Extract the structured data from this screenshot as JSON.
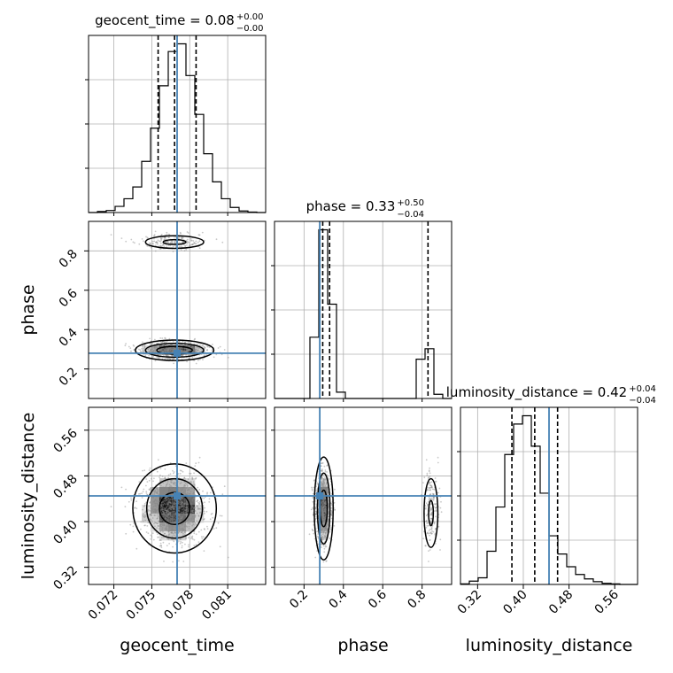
{
  "chart_data": {
    "type": "corner",
    "parameters": [
      "geocent_time",
      "phase",
      "luminosity_distance"
    ],
    "truths": {
      "geocent_time": 0.077,
      "phase": 0.28,
      "luminosity_distance": 0.445
    },
    "titles": [
      {
        "param": "geocent_time",
        "text": "geocent_time = 0.08",
        "sup": "+0.00",
        "sub": "−0.00"
      },
      {
        "param": "phase",
        "text": "phase = 0.33",
        "sup": "+0.50",
        "sub": "−0.04"
      },
      {
        "param": "luminosity_distance",
        "text": "luminosity_distance = 0.42",
        "sup": "+0.04",
        "sub": "−0.04"
      }
    ],
    "axis_labels": {
      "geocent_time": "geocent_time",
      "phase": "phase",
      "luminosity_distance": "luminosity_distance"
    },
    "ranges": {
      "geocent_time": [
        0.07,
        0.084
      ],
      "phase": [
        0.05,
        0.95
      ],
      "luminosity_distance": [
        0.29,
        0.6
      ]
    },
    "ticks": {
      "geocent_time": [
        "0.072",
        "0.075",
        "0.078",
        "0.081"
      ],
      "phase": [
        "0.2",
        "0.4",
        "0.6",
        "0.8"
      ],
      "luminosity_distance": [
        "0.32",
        "0.40",
        "0.48",
        "0.56"
      ]
    },
    "quantiles": {
      "geocent_time": [
        0.0755,
        0.0768,
        0.0785
      ],
      "phase": [
        0.295,
        0.33,
        0.83
      ],
      "luminosity_distance": [
        0.38,
        0.42,
        0.46
      ]
    },
    "histograms": {
      "geocent_time": {
        "edges": [
          0.07,
          0.0707,
          0.0714,
          0.0721,
          0.0728,
          0.0735,
          0.0742,
          0.0749,
          0.0756,
          0.0763,
          0.077,
          0.0777,
          0.0784,
          0.0791,
          0.0798,
          0.0805,
          0.0812,
          0.0819,
          0.0826,
          0.0833,
          0.084
        ],
        "counts": [
          0,
          2,
          4,
          12,
          27,
          50,
          100,
          165,
          248,
          315,
          330,
          268,
          192,
          115,
          60,
          27,
          10,
          3,
          1,
          0
        ]
      },
      "phase": {
        "edges": [
          0.05,
          0.095,
          0.14,
          0.185,
          0.23,
          0.275,
          0.32,
          0.365,
          0.41,
          0.455,
          0.5,
          0.545,
          0.59,
          0.635,
          0.68,
          0.725,
          0.77,
          0.815,
          0.86,
          0.905,
          0.95
        ],
        "counts": [
          0,
          0,
          0,
          0,
          117,
          322,
          180,
          12,
          0,
          0,
          0,
          0,
          0,
          0,
          0,
          0,
          75,
          95,
          8,
          0
        ]
      },
      "luminosity_distance": {
        "edges": [
          0.29,
          0.3055,
          0.321,
          0.3365,
          0.352,
          0.3675,
          0.383,
          0.3985,
          0.414,
          0.4295,
          0.445,
          0.4605,
          0.476,
          0.4915,
          0.507,
          0.5225,
          0.538,
          0.5535,
          0.569,
          0.5845,
          0.6
        ],
        "counts": [
          1,
          6,
          12,
          60,
          140,
          235,
          290,
          305,
          250,
          165,
          88,
          55,
          32,
          18,
          10,
          5,
          2,
          1,
          0,
          0
        ]
      }
    }
  }
}
